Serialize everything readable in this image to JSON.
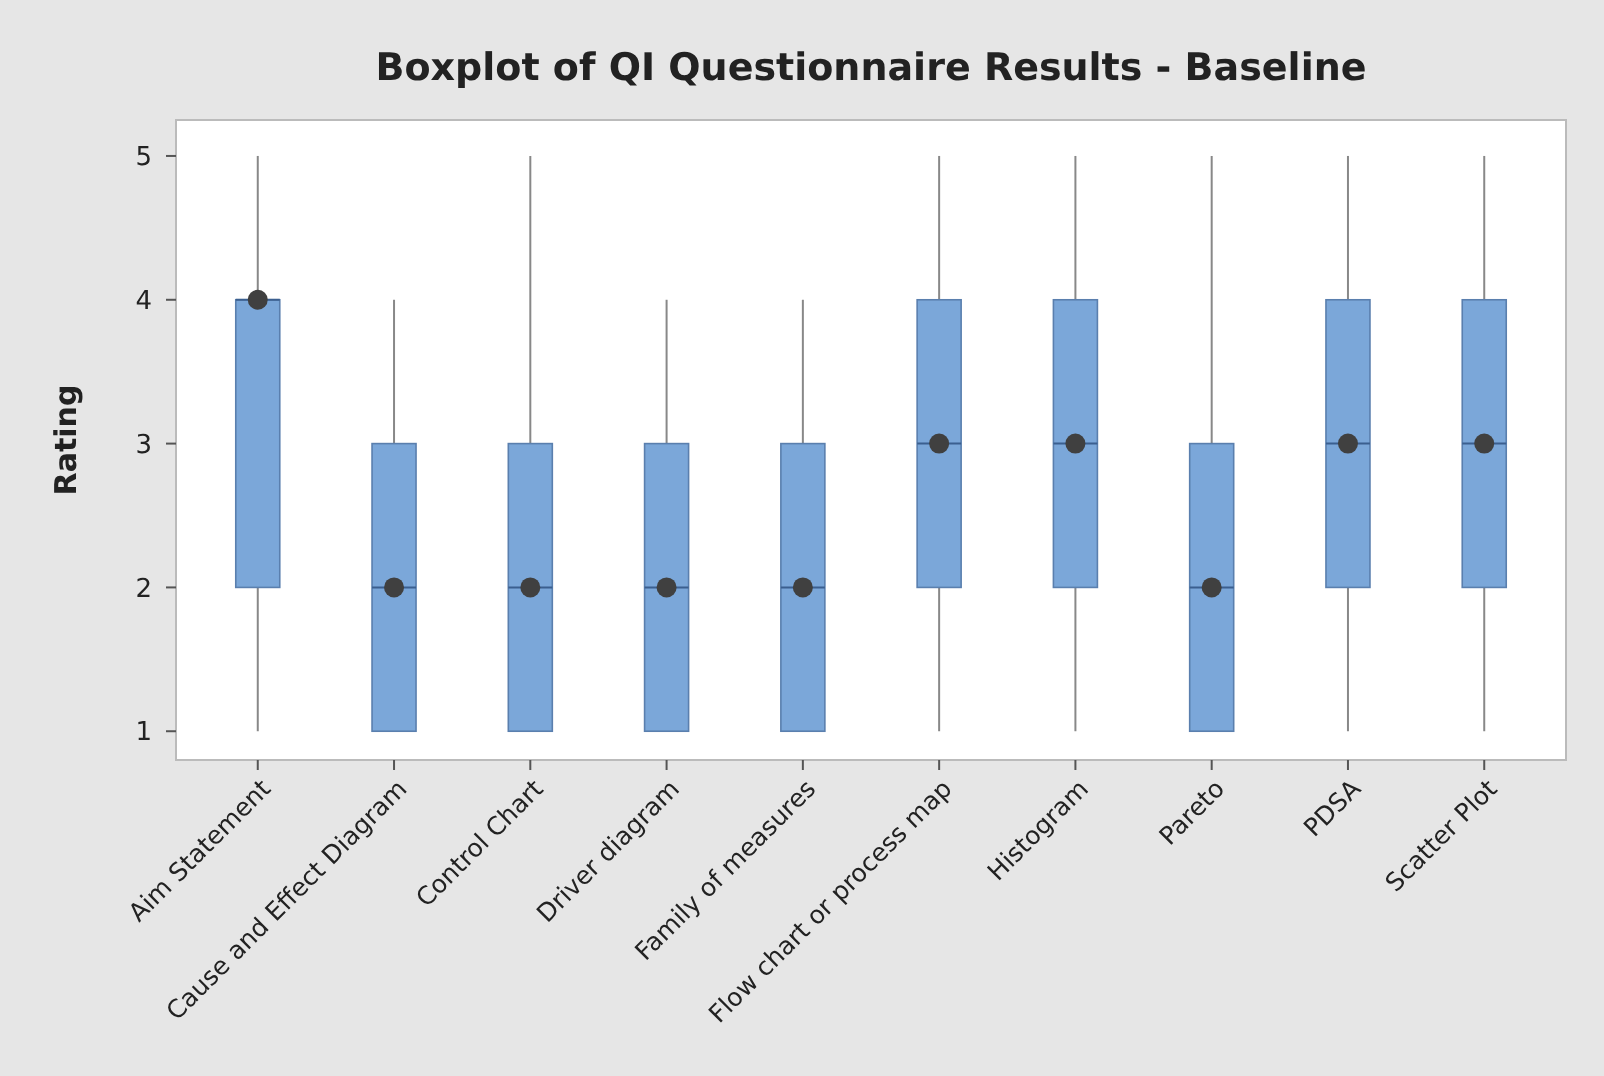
{
  "chart_data": {
    "type": "box",
    "title": "Boxplot of QI Questionnaire Results - Baseline",
    "ylabel": "Rating",
    "categories": [
      "Aim Statement",
      "Cause and Effect Diagram",
      "Control Chart",
      "Driver diagram",
      "Family of measures",
      "Flow chart or process map",
      "Histogram",
      "Pareto",
      "PDSA",
      "Scatter Plot"
    ],
    "color": "#7ba7d9",
    "grid": false,
    "ylim": [
      0.8,
      5.25
    ],
    "yticks": [
      1,
      2,
      3,
      4,
      5
    ],
    "boxes": [
      {
        "low": 1,
        "q1": 2,
        "median": 4,
        "q3": 4,
        "high": 5,
        "mean": 4
      },
      {
        "low": 1,
        "q1": 1,
        "median": 2,
        "q3": 3,
        "high": 4,
        "mean": 2
      },
      {
        "low": 1,
        "q1": 1,
        "median": 2,
        "q3": 3,
        "high": 5,
        "mean": 2
      },
      {
        "low": 1,
        "q1": 1,
        "median": 2,
        "q3": 3,
        "high": 4,
        "mean": 2
      },
      {
        "low": 1,
        "q1": 1,
        "median": 2,
        "q3": 3,
        "high": 4,
        "mean": 2
      },
      {
        "low": 1,
        "q1": 2,
        "median": 3,
        "q3": 4,
        "high": 5,
        "mean": 3
      },
      {
        "low": 1,
        "q1": 2,
        "median": 3,
        "q3": 4,
        "high": 5,
        "mean": 3
      },
      {
        "low": 1,
        "q1": 1,
        "median": 2,
        "q3": 3,
        "high": 5,
        "mean": 2
      },
      {
        "low": 1,
        "q1": 2,
        "median": 3,
        "q3": 4,
        "high": 5,
        "mean": 3
      },
      {
        "low": 1,
        "q1": 2,
        "median": 3,
        "q3": 4,
        "high": 5,
        "mean": 3
      }
    ]
  }
}
